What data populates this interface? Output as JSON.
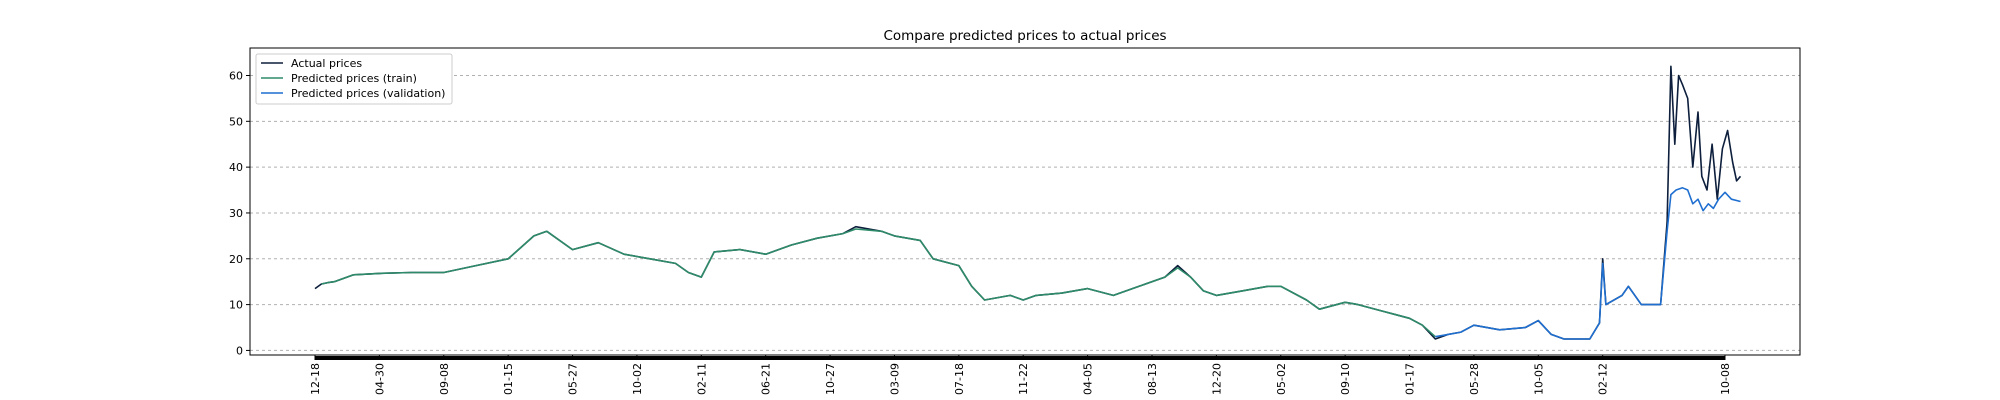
{
  "chart_data": {
    "type": "line",
    "title": "Compare predicted prices to actual prices",
    "xlabel": "",
    "ylabel": "",
    "ylim": [
      -1,
      66
    ],
    "yticks": [
      0,
      10,
      20,
      30,
      40,
      50,
      60
    ],
    "grid": "horizontal dashed",
    "legend_position": "top-left",
    "x_tick_labels": [
      "12-18",
      "04-30",
      "09-08",
      "01-15",
      "05-27",
      "10-02",
      "02-11",
      "06-21",
      "10-27",
      "03-09",
      "07-18",
      "11-22",
      "04-05",
      "08-13",
      "12-20",
      "05-02",
      "09-10",
      "01-17",
      "05-28",
      "10-05",
      "02-12",
      "10-08"
    ],
    "x_tick_positions": [
      0,
      100,
      200,
      300,
      400,
      500,
      600,
      700,
      800,
      900,
      1000,
      1100,
      1200,
      1300,
      1400,
      1500,
      1600,
      1700,
      1800,
      1900,
      2000,
      2190
    ],
    "x_range": [
      0,
      2190
    ],
    "series": [
      {
        "name": "Actual prices",
        "color": "#0d1f3c",
        "points": [
          [
            0,
            13.5
          ],
          [
            10,
            14.5
          ],
          [
            20,
            14.8
          ],
          [
            30,
            15
          ],
          [
            60,
            16.5
          ],
          [
            100,
            16.8
          ],
          [
            150,
            17
          ],
          [
            200,
            17
          ],
          [
            250,
            18.5
          ],
          [
            300,
            20
          ],
          [
            340,
            25
          ],
          [
            360,
            26
          ],
          [
            400,
            22
          ],
          [
            440,
            23.5
          ],
          [
            480,
            21
          ],
          [
            520,
            20
          ],
          [
            560,
            19
          ],
          [
            580,
            17
          ],
          [
            600,
            16
          ],
          [
            620,
            21.5
          ],
          [
            660,
            22
          ],
          [
            700,
            21
          ],
          [
            740,
            23
          ],
          [
            780,
            24.5
          ],
          [
            820,
            25.5
          ],
          [
            840,
            27
          ],
          [
            880,
            26
          ],
          [
            900,
            25
          ],
          [
            940,
            24
          ],
          [
            960,
            20
          ],
          [
            1000,
            18.5
          ],
          [
            1020,
            14
          ],
          [
            1040,
            11
          ],
          [
            1080,
            12
          ],
          [
            1100,
            11
          ],
          [
            1120,
            12
          ],
          [
            1160,
            12.5
          ],
          [
            1200,
            13.5
          ],
          [
            1240,
            12
          ],
          [
            1280,
            14
          ],
          [
            1320,
            16
          ],
          [
            1340,
            18.5
          ],
          [
            1360,
            16
          ],
          [
            1380,
            13
          ],
          [
            1400,
            12
          ],
          [
            1440,
            13
          ],
          [
            1480,
            14
          ],
          [
            1500,
            14
          ],
          [
            1540,
            11
          ],
          [
            1560,
            9
          ],
          [
            1600,
            10.5
          ],
          [
            1620,
            10
          ],
          [
            1660,
            8.5
          ],
          [
            1700,
            7
          ],
          [
            1720,
            5.5
          ],
          [
            1740,
            2.5
          ],
          [
            1760,
            3.5
          ],
          [
            1780,
            4
          ],
          [
            1800,
            5.5
          ],
          [
            1840,
            4.5
          ],
          [
            1880,
            5
          ],
          [
            1900,
            6.5
          ],
          [
            1920,
            3.5
          ],
          [
            1940,
            2.5
          ],
          [
            1980,
            2.5
          ],
          [
            1995,
            6
          ],
          [
            2000,
            20
          ],
          [
            2005,
            10
          ],
          [
            2030,
            12
          ],
          [
            2040,
            14
          ],
          [
            2060,
            10
          ],
          [
            2090,
            10
          ],
          [
            2100,
            28
          ],
          [
            2106,
            62
          ],
          [
            2112,
            45
          ],
          [
            2118,
            60
          ],
          [
            2124,
            58
          ],
          [
            2132,
            55
          ],
          [
            2140,
            40
          ],
          [
            2148,
            52
          ],
          [
            2154,
            38
          ],
          [
            2162,
            35
          ],
          [
            2170,
            45
          ],
          [
            2178,
            33
          ],
          [
            2186,
            44
          ],
          [
            2194,
            48
          ],
          [
            2202,
            41
          ],
          [
            2208,
            37
          ],
          [
            2214,
            38
          ]
        ]
      },
      {
        "name": "Predicted prices (train)",
        "color": "#2e8b6a",
        "points": [
          [
            10,
            14.5
          ],
          [
            20,
            14.8
          ],
          [
            30,
            15
          ],
          [
            60,
            16.5
          ],
          [
            100,
            16.8
          ],
          [
            150,
            17
          ],
          [
            200,
            17
          ],
          [
            250,
            18.5
          ],
          [
            300,
            20
          ],
          [
            340,
            25
          ],
          [
            360,
            26
          ],
          [
            400,
            22
          ],
          [
            440,
            23.5
          ],
          [
            480,
            21
          ],
          [
            520,
            20
          ],
          [
            560,
            19
          ],
          [
            580,
            17
          ],
          [
            600,
            16
          ],
          [
            620,
            21.5
          ],
          [
            660,
            22
          ],
          [
            700,
            21
          ],
          [
            740,
            23
          ],
          [
            780,
            24.5
          ],
          [
            820,
            25.5
          ],
          [
            840,
            26.5
          ],
          [
            880,
            26
          ],
          [
            900,
            25
          ],
          [
            940,
            24
          ],
          [
            960,
            20
          ],
          [
            1000,
            18.5
          ],
          [
            1020,
            14
          ],
          [
            1040,
            11
          ],
          [
            1080,
            12
          ],
          [
            1100,
            11
          ],
          [
            1120,
            12
          ],
          [
            1160,
            12.5
          ],
          [
            1200,
            13.5
          ],
          [
            1240,
            12
          ],
          [
            1280,
            14
          ],
          [
            1320,
            16
          ],
          [
            1340,
            18
          ],
          [
            1360,
            16
          ],
          [
            1380,
            13
          ],
          [
            1400,
            12
          ],
          [
            1440,
            13
          ],
          [
            1480,
            14
          ],
          [
            1500,
            14
          ],
          [
            1540,
            11
          ],
          [
            1560,
            9
          ],
          [
            1600,
            10.5
          ],
          [
            1620,
            10
          ],
          [
            1660,
            8.5
          ],
          [
            1700,
            7
          ],
          [
            1720,
            5.5
          ],
          [
            1740,
            3
          ]
        ]
      },
      {
        "name": "Predicted prices (validation)",
        "color": "#1f6fd0",
        "points": [
          [
            1740,
            3
          ],
          [
            1760,
            3.5
          ],
          [
            1780,
            4
          ],
          [
            1800,
            5.5
          ],
          [
            1840,
            4.5
          ],
          [
            1880,
            5
          ],
          [
            1900,
            6.5
          ],
          [
            1920,
            3.5
          ],
          [
            1940,
            2.5
          ],
          [
            1980,
            2.5
          ],
          [
            1995,
            6
          ],
          [
            2000,
            19
          ],
          [
            2005,
            10
          ],
          [
            2030,
            12
          ],
          [
            2040,
            14
          ],
          [
            2060,
            10
          ],
          [
            2090,
            10
          ],
          [
            2100,
            26
          ],
          [
            2106,
            34
          ],
          [
            2114,
            35
          ],
          [
            2124,
            35.5
          ],
          [
            2132,
            35
          ],
          [
            2140,
            32
          ],
          [
            2148,
            33
          ],
          [
            2156,
            30.5
          ],
          [
            2164,
            32
          ],
          [
            2172,
            31
          ],
          [
            2180,
            33
          ],
          [
            2190,
            34.5
          ],
          [
            2200,
            33
          ],
          [
            2214,
            32.5
          ]
        ]
      }
    ]
  }
}
